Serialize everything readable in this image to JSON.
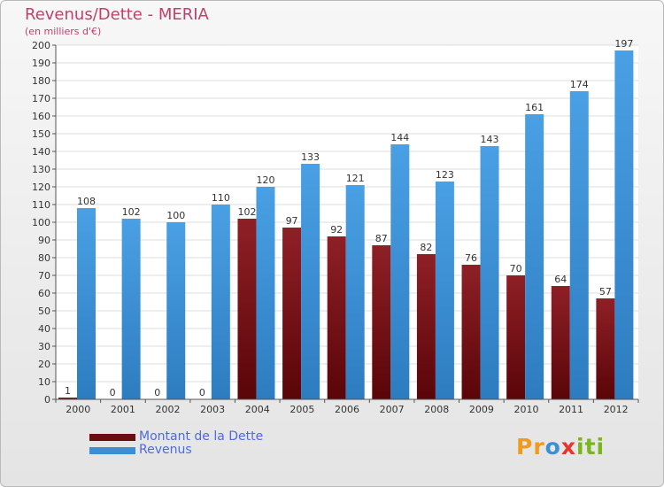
{
  "title": "Revenus/Dette - MERIA",
  "subtitle": "(en milliers d'€)",
  "colors": {
    "dette": "#7a1318",
    "revenus": "#3d8fd4",
    "title": "#c0406a",
    "legend_text": "#4d6be0"
  },
  "legend": [
    {
      "name": "Montant de la Dette",
      "color": "#6b0d12"
    },
    {
      "name": "Revenus",
      "color": "#3d8fd4"
    }
  ],
  "logo": {
    "text": "Proxiti",
    "letters": [
      "P",
      "r",
      "o",
      "x",
      "i",
      "t",
      "i"
    ],
    "letter_colors": [
      "#f29a1e",
      "#f29a1e",
      "#3d8fd4",
      "#e5352d",
      "#7ab51d",
      "#7ab51d",
      "#7ab51d"
    ]
  },
  "chart_data": {
    "type": "bar",
    "categories": [
      "2000",
      "2001",
      "2002",
      "2003",
      "2004",
      "2005",
      "2006",
      "2007",
      "2008",
      "2009",
      "2010",
      "2011",
      "2012"
    ],
    "series": [
      {
        "name": "Montant de la Dette",
        "values": [
          1,
          0,
          0,
          0,
          102,
          97,
          92,
          87,
          82,
          76,
          70,
          64,
          57
        ]
      },
      {
        "name": "Revenus",
        "values": [
          108,
          102,
          100,
          110,
          120,
          133,
          121,
          144,
          123,
          143,
          161,
          174,
          197
        ]
      }
    ],
    "ylim": [
      0,
      200
    ],
    "yticks": [
      0,
      10,
      20,
      30,
      40,
      50,
      60,
      70,
      80,
      90,
      100,
      110,
      120,
      130,
      140,
      150,
      160,
      170,
      180,
      190,
      200
    ],
    "grid": true
  }
}
